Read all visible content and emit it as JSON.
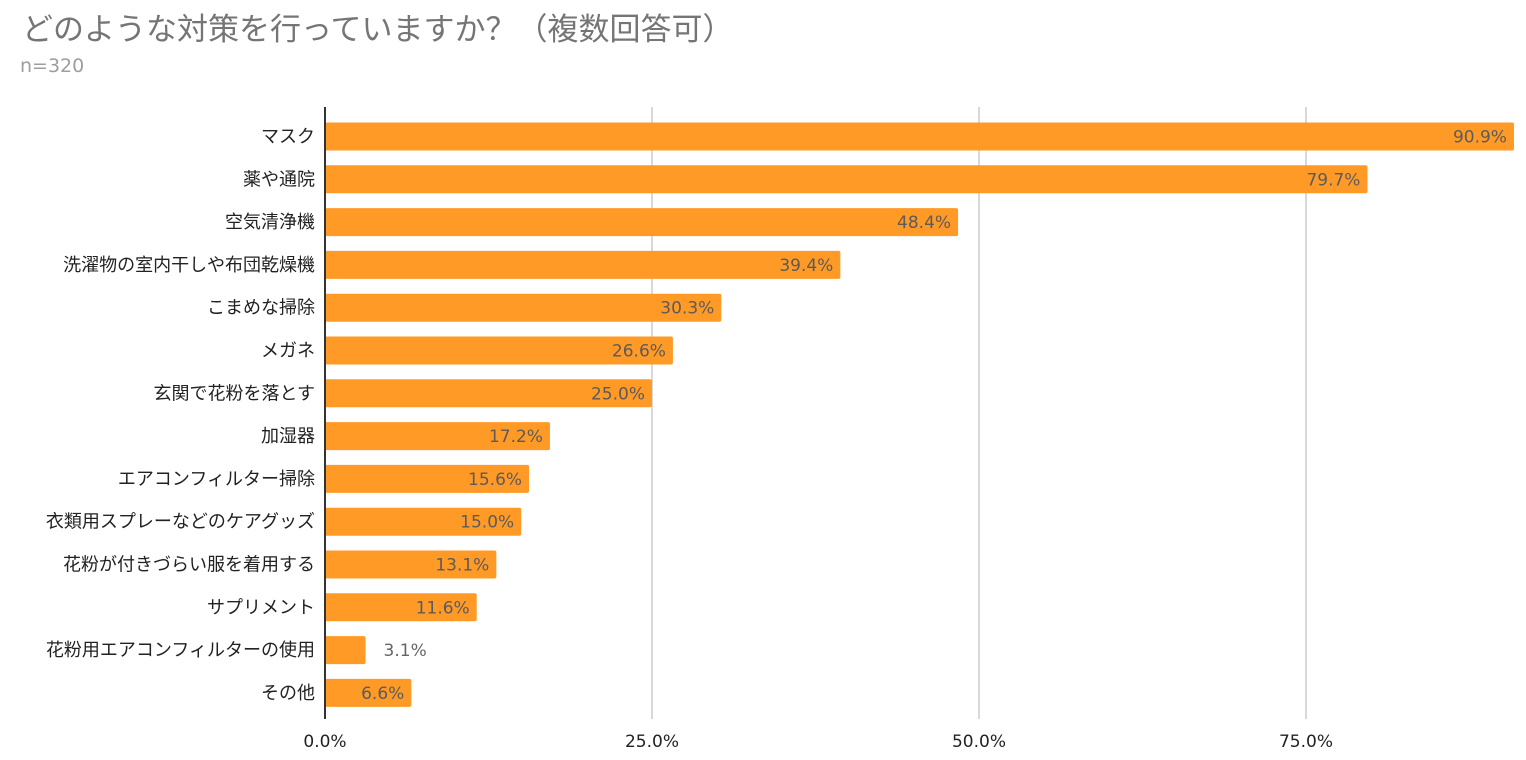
{
  "title": "どのような対策を行っていますか？（複数回答可）",
  "subtitle": "n=320",
  "colors": {
    "bar": "#ff9a27",
    "grid": "#cccccc",
    "axis": "#333333",
    "label_inside": "#5b5b5b",
    "label_outside": "#666666"
  },
  "chart_data": {
    "type": "bar",
    "orientation": "horizontal",
    "title": "どのような対策を行っていますか？（複数回答可）",
    "subtitle": "n=320",
    "categories": [
      "マスク",
      "薬や通院",
      "空気清浄機",
      "洗濯物の室内干しや布団乾燥機",
      "こまめな掃除",
      "メガネ",
      "玄関で花粉を落とす",
      "加湿器",
      "エアコンフィルター掃除",
      "衣類用スプレーなどのケアグッズ",
      "花粉が付きづらい服を着用する",
      "サプリメント",
      "花粉用エアコンフィルターの使用",
      "その他"
    ],
    "values": [
      90.9,
      79.7,
      48.4,
      39.4,
      30.3,
      26.6,
      25.0,
      17.2,
      15.6,
      15.0,
      13.1,
      11.6,
      3.1,
      6.6
    ],
    "data_labels": [
      "90.9%",
      "79.7%",
      "48.4%",
      "39.4%",
      "30.3%",
      "26.6%",
      "25.0%",
      "17.2%",
      "15.6%",
      "15.0%",
      "13.1%",
      "11.6%",
      "3.1%",
      "6.6%"
    ],
    "xlim": [
      0,
      91
    ],
    "x_ticks": [
      0,
      25,
      50,
      75
    ],
    "x_tick_labels": [
      "0.0%",
      "25.0%",
      "50.0%",
      "75.0%"
    ],
    "grid": true,
    "legend": "none"
  }
}
